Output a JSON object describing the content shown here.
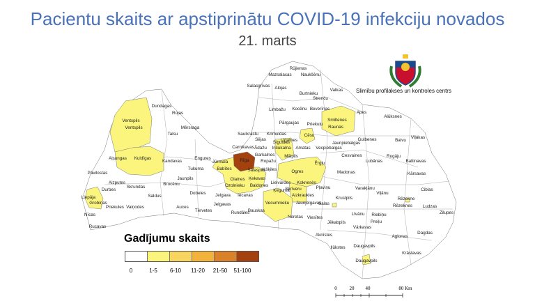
{
  "header": {
    "title": "Pacientu skaits ar apstiprinātu COVID-19 infekciju novados",
    "subtitle": "21. marts"
  },
  "organization": {
    "name": "Slimību profilakses un kontroles centrs",
    "logo": "latvia-coat-of-arms"
  },
  "legend": {
    "title": "Gadījumu skaits",
    "classes": [
      {
        "label": "0",
        "color": "#ffffff"
      },
      {
        "label": "1-5",
        "color": "#fbf57e"
      },
      {
        "label": "6-10",
        "color": "#f8d460"
      },
      {
        "label": "11-20",
        "color": "#f3b23c"
      },
      {
        "label": "21-50",
        "color": "#d9822b"
      },
      {
        "label": "51-100",
        "color": "#a3410f"
      }
    ]
  },
  "scale_bar": {
    "ticks": [
      "0",
      "20",
      "40",
      "80 Km"
    ]
  },
  "map": {
    "highlighted": {
      "1-5": [
        "Ventspils",
        "Kuldīgas",
        "Liepāja",
        "Grobiņas",
        "Jūrmala",
        "Olaines",
        "Ozolnieku",
        "Ķekavas",
        "Salaspils",
        "Garkalnes",
        "Siguldas",
        "Cēsu",
        "Smiltenes",
        "Ogres",
        "Vecumnieku",
        "Daugavpils",
        "Rēzekne",
        "Jēkabpils"
      ],
      "51-100": [
        "Rīga"
      ]
    },
    "labels": [
      "Rūjienas",
      "Mazsalacas",
      "Naukšēnu",
      "Salacgrīvas",
      "Alojas",
      "Burtnieku",
      "Valkas",
      "Strenču",
      "Limbažu",
      "Kocēnu",
      "Beverīnas",
      "Apes",
      "Smiltenes",
      "Pārgaujas",
      "Priekuļu",
      "Raunas",
      "Alūksnes",
      "Dundagas",
      "Rojas",
      "Mērsraga",
      "Talsu",
      "Ventspils",
      "Ventspils",
      "Saulkrastu",
      "Krimuldas",
      "Sējas",
      "Līgatnes",
      "Cēsu",
      "Jaunpiebalgas",
      "Gulbenes",
      "Balvu",
      "Viļakas",
      "Carnikavas",
      "Ādažu",
      "Inčukalna",
      "Siguldas",
      "Amatas",
      "Vecpiebalgas",
      "Alsungas",
      "Kuldīgas",
      "Engures",
      "Kandavas",
      "Jūrmala",
      "Rīga",
      "Garkalnes",
      "Ropažu",
      "Mālpils",
      "Cesvaines",
      "Lubānas",
      "Rugāju",
      "Baltinavas",
      "Ērgļu",
      "Pāvilostas",
      "Tukuma",
      "Babītes",
      "Salaspils",
      "Ikšķiles",
      "Ogres",
      "Madonas",
      "Kārsavas",
      "Aizputes",
      "Jaunpils",
      "Olaines",
      "Ķekavas",
      "Lielvārdes",
      "Koknesès",
      "Pļaviņu",
      "Varakļānu",
      "Viļānu",
      "Ciblas",
      "Durbes",
      "Skrundas",
      "Brocēnu",
      "Ozolnieku",
      "Baldones",
      "Ķeguma",
      "Skrīveru",
      "Aizkraukles",
      "Rēzekne",
      "Rēzeknes",
      "Ludzas",
      "Liepāja",
      "Grobiņas",
      "Priekules",
      "Vaiņodes",
      "Saldus",
      "Dobeles",
      "Jelgava",
      "Iecavas",
      "Krustpils",
      "Jelgavas",
      "Vecumnieku",
      "Jaunjelgavas",
      "Salas",
      "Auces",
      "Tērvetes",
      "Bauskas",
      "Rundāles",
      "Zilupes",
      "Līvānu",
      "Riebiņu",
      "Nīcas",
      "Rucavas",
      "Neretas",
      "Viesītes",
      "Jēkabpils",
      "Preiļu",
      "Vārkavas",
      "Dagdas",
      "Aknīstes",
      "Aglonas",
      "Ilūkstes",
      "Daugavpils",
      "Daugavpils",
      "Krāslavas"
    ]
  }
}
